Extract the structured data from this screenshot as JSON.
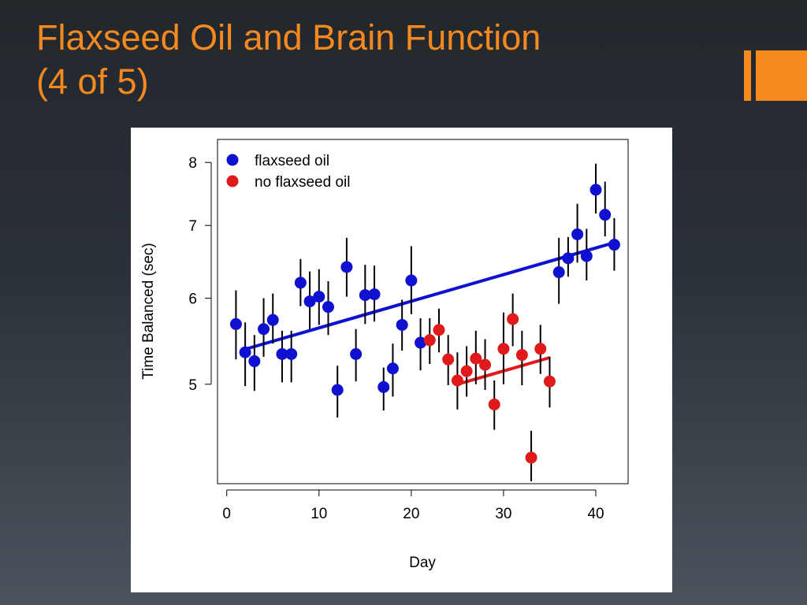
{
  "slide": {
    "title_line1": "Flaxseed Oil and Brain Function",
    "title_line2": "(4 of 5)",
    "title_color": "#f5891f",
    "accent_color": "#f5891f"
  },
  "chart_data": {
    "type": "scatter",
    "title": "",
    "xlabel": "Day",
    "ylabel": "Time Balanced (sec)",
    "y_scale": "log",
    "xlim": [
      -1,
      43.5
    ],
    "ylim": [
      4.05,
      8.4
    ],
    "x_ticks": [
      0,
      10,
      20,
      30,
      40
    ],
    "x_tick_labels": [
      "0",
      "10",
      "20",
      "30",
      "40"
    ],
    "y_ticks": [
      5,
      6,
      7,
      8
    ],
    "y_tick_labels": [
      "5",
      "6",
      "7",
      "8"
    ],
    "grid": false,
    "legend_position": "top-left",
    "series": [
      {
        "name": "flaxseed oil",
        "color": "#1010d0",
        "points": [
          {
            "x": 1,
            "y": 5.68,
            "lo": 5.27,
            "hi": 6.1
          },
          {
            "x": 2,
            "y": 5.35,
            "lo": 4.98,
            "hi": 5.7
          },
          {
            "x": 3,
            "y": 5.25,
            "lo": 4.93,
            "hi": 5.55
          },
          {
            "x": 4,
            "y": 5.62,
            "lo": 5.3,
            "hi": 6.0
          },
          {
            "x": 5,
            "y": 5.73,
            "lo": 5.45,
            "hi": 6.06
          },
          {
            "x": 6,
            "y": 5.33,
            "lo": 5.02,
            "hi": 5.6
          },
          {
            "x": 7,
            "y": 5.33,
            "lo": 5.02,
            "hi": 5.6
          },
          {
            "x": 8,
            "y": 6.2,
            "lo": 5.9,
            "hi": 6.52
          },
          {
            "x": 9,
            "y": 5.96,
            "lo": 5.62,
            "hi": 6.35
          },
          {
            "x": 10,
            "y": 6.02,
            "lo": 5.67,
            "hi": 6.38
          },
          {
            "x": 11,
            "y": 5.89,
            "lo": 5.55,
            "hi": 6.22
          },
          {
            "x": 12,
            "y": 4.94,
            "lo": 4.66,
            "hi": 5.2
          },
          {
            "x": 13,
            "y": 6.41,
            "lo": 6.02,
            "hi": 6.82
          },
          {
            "x": 14,
            "y": 5.33,
            "lo": 5.03,
            "hi": 5.62
          },
          {
            "x": 15,
            "y": 6.04,
            "lo": 5.68,
            "hi": 6.44
          },
          {
            "x": 16,
            "y": 6.05,
            "lo": 5.71,
            "hi": 6.43
          },
          {
            "x": 17,
            "y": 4.97,
            "lo": 4.73,
            "hi": 5.18
          },
          {
            "x": 18,
            "y": 5.17,
            "lo": 4.87,
            "hi": 5.45
          },
          {
            "x": 19,
            "y": 5.67,
            "lo": 5.37,
            "hi": 5.98
          },
          {
            "x": 20,
            "y": 6.23,
            "lo": 5.8,
            "hi": 6.7
          },
          {
            "x": 21,
            "y": 5.46,
            "lo": 5.15,
            "hi": 5.75
          }
        ],
        "trend": {
          "x": [
            1.5,
            42
          ],
          "y": [
            5.37,
            6.75
          ]
        }
      },
      {
        "name": "no flaxseed oil",
        "color": "#e01a1a",
        "points": [
          {
            "x": 22,
            "y": 5.49,
            "lo": 5.22,
            "hi": 5.75
          },
          {
            "x": 23,
            "y": 5.61,
            "lo": 5.35,
            "hi": 5.87
          },
          {
            "x": 24,
            "y": 5.27,
            "lo": 4.99,
            "hi": 5.55
          },
          {
            "x": 25,
            "y": 5.04,
            "lo": 4.74,
            "hi": 5.35
          },
          {
            "x": 26,
            "y": 5.14,
            "lo": 4.87,
            "hi": 5.42
          },
          {
            "x": 27,
            "y": 5.28,
            "lo": 5.0,
            "hi": 5.6
          },
          {
            "x": 28,
            "y": 5.21,
            "lo": 4.94,
            "hi": 5.5
          },
          {
            "x": 29,
            "y": 4.79,
            "lo": 4.54,
            "hi": 5.04
          },
          {
            "x": 30,
            "y": 5.39,
            "lo": 5.0,
            "hi": 5.82
          },
          {
            "x": 31,
            "y": 5.74,
            "lo": 5.42,
            "hi": 6.06
          },
          {
            "x": 32,
            "y": 5.32,
            "lo": 4.99,
            "hi": 5.6
          },
          {
            "x": 33,
            "y": 4.28,
            "lo": 4.07,
            "hi": 4.53
          },
          {
            "x": 34,
            "y": 5.39,
            "lo": 5.11,
            "hi": 5.67
          },
          {
            "x": 35,
            "y": 5.03,
            "lo": 4.76,
            "hi": 5.3
          }
        ],
        "trend": {
          "x": [
            25,
            35
          ],
          "y": [
            5.0,
            5.29
          ]
        }
      },
      {
        "name": "flaxseed oil",
        "color": "#1010d0",
        "show_in_legend": false,
        "points": [
          {
            "x": 36,
            "y": 6.34,
            "lo": 5.93,
            "hi": 6.82
          },
          {
            "x": 37,
            "y": 6.53,
            "lo": 6.28,
            "hi": 6.83
          },
          {
            "x": 38,
            "y": 6.87,
            "lo": 6.47,
            "hi": 7.33
          },
          {
            "x": 39,
            "y": 6.56,
            "lo": 6.23,
            "hi": 6.95
          },
          {
            "x": 40,
            "y": 7.55,
            "lo": 7.18,
            "hi": 7.98
          },
          {
            "x": 41,
            "y": 7.16,
            "lo": 6.84,
            "hi": 7.68
          },
          {
            "x": 42,
            "y": 6.72,
            "lo": 6.36,
            "hi": 7.11
          }
        ]
      }
    ]
  }
}
